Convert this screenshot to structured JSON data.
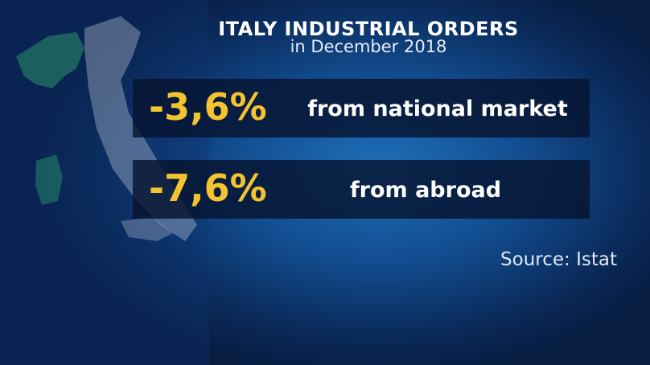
{
  "header": {
    "title": "ITALY INDUSTRIAL ORDERS",
    "subtitle": "in December 2018"
  },
  "rows": [
    {
      "value": "-3,6%",
      "label": "from national market"
    },
    {
      "value": "-7,6%",
      "label": "from abroad"
    }
  ],
  "source": "Source: Istat"
}
